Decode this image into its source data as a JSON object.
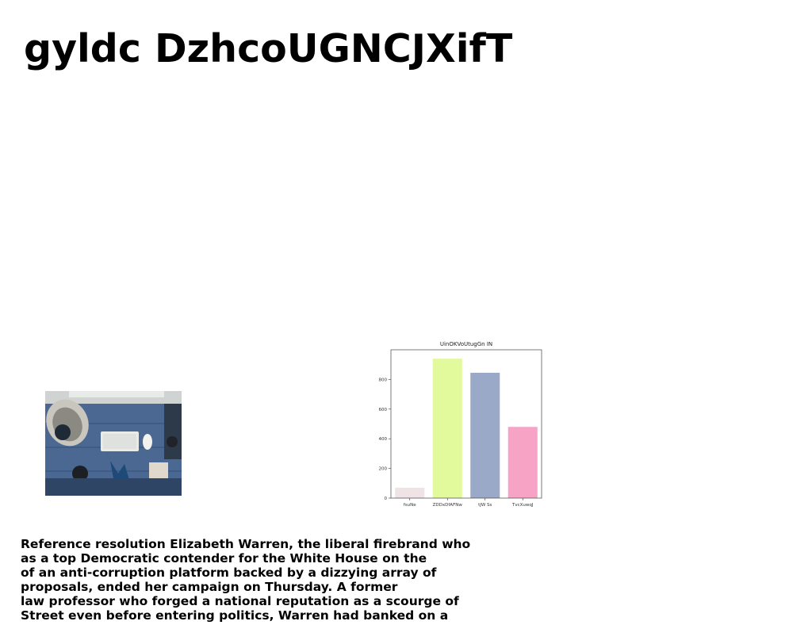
{
  "document": {
    "title": "gyldc DzhcoUGNCJXifT",
    "photo_icon": "desk-workspace-photo",
    "paragraph_lines": [
      "Reference resolution Elizabeth Warren, the liberal firebrand who",
      "as a top Democratic contender for the White House on the",
      "of an anti-corruption platform backed by a dizzying array of",
      "proposals, ended her campaign on Thursday. A former",
      "law professor who forged a national reputation as a scourge of",
      "Street even before entering politics, Warren had banked on a"
    ]
  },
  "chart_data": {
    "type": "bar",
    "title": "UinOKVoUtugGn IN",
    "categories": [
      "fsuNe",
      "ZDDxDfAFNw",
      "tJW Ss",
      "TvcXuwqJ"
    ],
    "values": [
      70,
      940,
      845,
      480
    ],
    "colors": [
      "#efe3e6",
      "#e2f99c",
      "#9aa9c8",
      "#f7a3c6"
    ],
    "ylim": [
      0,
      1000
    ],
    "yticks": [
      0,
      200,
      400,
      600,
      800
    ],
    "grid": false
  }
}
